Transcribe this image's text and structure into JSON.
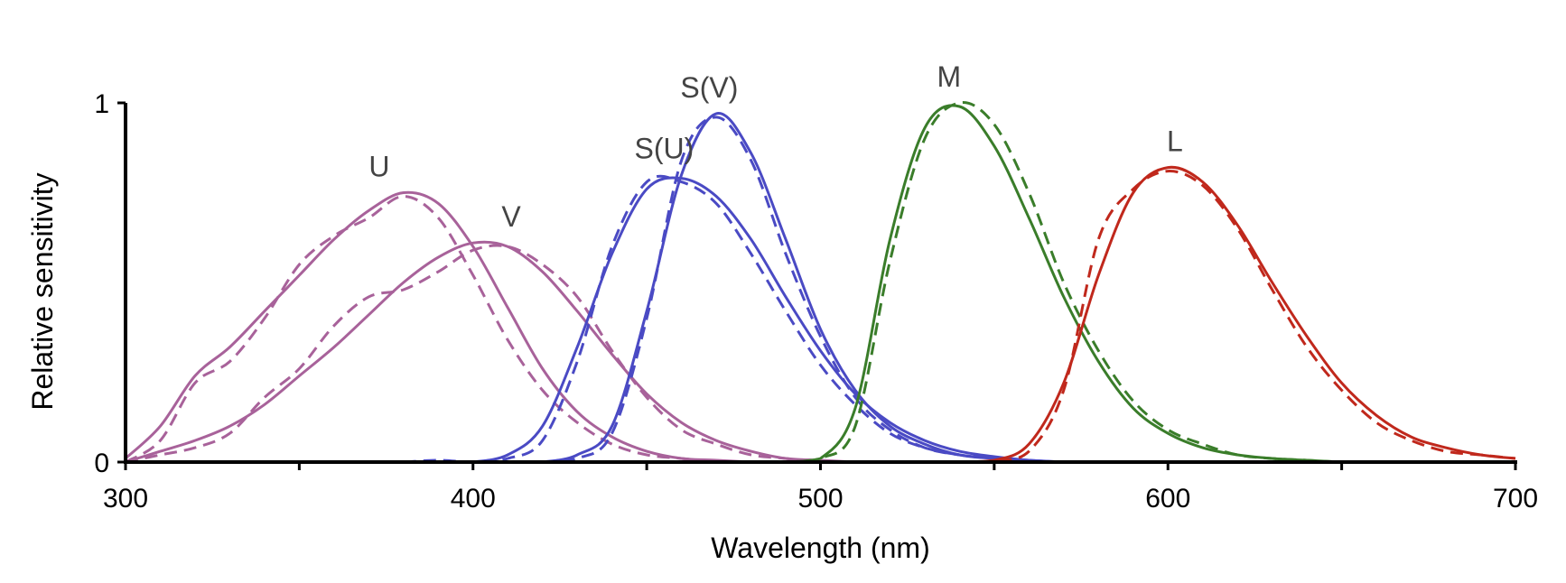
{
  "chart_data": {
    "type": "line",
    "title": "",
    "xlabel": "Wavelength (nm)",
    "ylabel": "Relative sensitivity",
    "xlim": [
      300,
      700
    ],
    "ylim": [
      0,
      1
    ],
    "x_ticks": [
      300,
      350,
      400,
      450,
      500,
      550,
      600,
      650,
      700
    ],
    "x_tick_labels": [
      "300",
      "",
      "400",
      "",
      "500",
      "",
      "600",
      "",
      "700"
    ],
    "y_ticks": [
      0,
      1
    ],
    "y_tick_labels": [
      "0",
      "1"
    ],
    "grid": false,
    "legend": "none",
    "x": [
      300,
      310,
      320,
      330,
      340,
      350,
      360,
      370,
      380,
      390,
      400,
      410,
      420,
      430,
      440,
      450,
      460,
      470,
      480,
      490,
      500,
      510,
      520,
      530,
      540,
      550,
      560,
      570,
      580,
      590,
      600,
      610,
      620,
      630,
      640,
      650,
      660,
      670,
      680,
      690,
      700
    ],
    "series": [
      {
        "name": "U",
        "label": "U",
        "style": "solid",
        "color": "#a8629a",
        "values": [
          0.01,
          0.1,
          0.24,
          0.32,
          0.42,
          0.52,
          0.62,
          0.7,
          0.75,
          0.72,
          0.6,
          0.43,
          0.26,
          0.14,
          0.07,
          0.03,
          0.01,
          0.005,
          0,
          0,
          0,
          0,
          0,
          0,
          0,
          0,
          0,
          0,
          0,
          0,
          0,
          0,
          0,
          0,
          0,
          0,
          0,
          0,
          0,
          0,
          0
        ]
      },
      {
        "name": "U (measured)",
        "label": "",
        "style": "dashed",
        "color": "#a8629a",
        "values": [
          0.0,
          0.06,
          0.22,
          0.28,
          0.4,
          0.55,
          0.63,
          0.68,
          0.74,
          0.68,
          0.52,
          0.34,
          0.2,
          0.11,
          0.05,
          0.02,
          0.01,
          0,
          0,
          0,
          0,
          0,
          0,
          0,
          0,
          0,
          0,
          0,
          0,
          0,
          0,
          0,
          0,
          0,
          0,
          0,
          0,
          0,
          0,
          0,
          0
        ]
      },
      {
        "name": "V",
        "label": "V",
        "style": "solid",
        "color": "#a8629a",
        "values": [
          0.0,
          0.03,
          0.06,
          0.1,
          0.16,
          0.24,
          0.32,
          0.41,
          0.5,
          0.57,
          0.61,
          0.6,
          0.53,
          0.42,
          0.3,
          0.19,
          0.11,
          0.06,
          0.03,
          0.01,
          0.005,
          0,
          0,
          0,
          0,
          0,
          0,
          0,
          0,
          0,
          0,
          0,
          0,
          0,
          0,
          0,
          0,
          0,
          0,
          0,
          0
        ]
      },
      {
        "name": "V (measured)",
        "label": "",
        "style": "dashed",
        "color": "#a8629a",
        "values": [
          0.0,
          0.02,
          0.04,
          0.08,
          0.18,
          0.26,
          0.38,
          0.46,
          0.48,
          0.53,
          0.59,
          0.6,
          0.55,
          0.46,
          0.31,
          0.18,
          0.09,
          0.05,
          0.02,
          0.01,
          0,
          0,
          0,
          0,
          0,
          0,
          0,
          0,
          0,
          0,
          0,
          0,
          0,
          0,
          0,
          0,
          0,
          0,
          0,
          0,
          0
        ]
      },
      {
        "name": "S(U)",
        "label": "S(U)",
        "style": "solid",
        "color": "#4a4ac4",
        "values": [
          0,
          0,
          0,
          0,
          0,
          0,
          0,
          0,
          0,
          0,
          0,
          0.02,
          0.1,
          0.32,
          0.58,
          0.76,
          0.79,
          0.74,
          0.62,
          0.46,
          0.31,
          0.19,
          0.11,
          0.06,
          0.03,
          0.015,
          0.005,
          0,
          0,
          0,
          0,
          0,
          0,
          0,
          0,
          0,
          0,
          0,
          0,
          0,
          0
        ]
      },
      {
        "name": "S(U) (measured)",
        "label": "",
        "style": "dashed",
        "color": "#4a4ac4",
        "values": [
          0,
          0,
          0,
          0,
          0,
          0,
          0,
          0,
          0,
          0.005,
          0,
          0.01,
          0.06,
          0.28,
          0.6,
          0.78,
          0.78,
          0.72,
          0.58,
          0.42,
          0.27,
          0.16,
          0.08,
          0.04,
          0.02,
          0.01,
          0,
          0,
          0,
          0,
          0,
          0,
          0,
          0,
          0,
          0,
          0,
          0,
          0,
          0,
          0
        ]
      },
      {
        "name": "S(V)",
        "label": "S(V)",
        "style": "solid",
        "color": "#4a4ac4",
        "values": [
          0,
          0,
          0,
          0,
          0,
          0,
          0,
          0,
          0,
          0,
          0,
          0,
          0,
          0.02,
          0.1,
          0.42,
          0.8,
          0.97,
          0.86,
          0.62,
          0.37,
          0.2,
          0.1,
          0.05,
          0.02,
          0.01,
          0.005,
          0,
          0,
          0,
          0,
          0,
          0,
          0,
          0,
          0,
          0,
          0,
          0,
          0,
          0
        ]
      },
      {
        "name": "S(V) (measured)",
        "label": "",
        "style": "dashed",
        "color": "#4a4ac4",
        "values": [
          0,
          0,
          0,
          0,
          0,
          0,
          0,
          0,
          0,
          0,
          0,
          0,
          0,
          0.01,
          0.08,
          0.4,
          0.84,
          0.96,
          0.84,
          0.58,
          0.35,
          0.18,
          0.09,
          0.04,
          0.02,
          0.01,
          0,
          0,
          0,
          0,
          0,
          0,
          0,
          0,
          0,
          0,
          0,
          0,
          0,
          0,
          0
        ]
      },
      {
        "name": "M",
        "label": "M",
        "style": "solid",
        "color": "#3a7d2a",
        "values": [
          0,
          0,
          0,
          0,
          0,
          0,
          0,
          0,
          0,
          0,
          0,
          0,
          0,
          0,
          0,
          0,
          0,
          0,
          0,
          0,
          0.01,
          0.15,
          0.62,
          0.93,
          0.99,
          0.88,
          0.68,
          0.46,
          0.28,
          0.15,
          0.08,
          0.04,
          0.02,
          0.01,
          0.005,
          0,
          0,
          0,
          0,
          0,
          0
        ]
      },
      {
        "name": "M (measured)",
        "label": "",
        "style": "dashed",
        "color": "#3a7d2a",
        "values": [
          0,
          0,
          0,
          0,
          0,
          0,
          0,
          0,
          0,
          0,
          0,
          0,
          0,
          0,
          0,
          0,
          0,
          0,
          0,
          0,
          0.01,
          0.1,
          0.56,
          0.9,
          1.0,
          0.94,
          0.75,
          0.5,
          0.31,
          0.17,
          0.09,
          0.05,
          0.02,
          0.01,
          0.005,
          0,
          0,
          0,
          0,
          0,
          0
        ]
      },
      {
        "name": "L",
        "label": "L",
        "style": "solid",
        "color": "#c0281c",
        "values": [
          0,
          0,
          0,
          0,
          0,
          0,
          0,
          0,
          0,
          0,
          0,
          0,
          0,
          0,
          0,
          0,
          0,
          0,
          0,
          0,
          0,
          0,
          0,
          0,
          0,
          0.005,
          0.05,
          0.22,
          0.52,
          0.75,
          0.82,
          0.78,
          0.66,
          0.5,
          0.35,
          0.22,
          0.13,
          0.07,
          0.04,
          0.02,
          0.01
        ]
      },
      {
        "name": "L (measured)",
        "label": "",
        "style": "dashed",
        "color": "#c0281c",
        "values": [
          0,
          0,
          0,
          0,
          0,
          0,
          0,
          0,
          0,
          0,
          0,
          0,
          0,
          0,
          0,
          0,
          0,
          0,
          0,
          0,
          0,
          0,
          0,
          0,
          0,
          0.003,
          0.03,
          0.2,
          0.62,
          0.76,
          0.81,
          0.77,
          0.65,
          0.48,
          0.32,
          0.2,
          0.11,
          0.06,
          0.03,
          0.02,
          0.01
        ]
      }
    ],
    "annotations": [
      {
        "text": "U",
        "x": 373,
        "y": 0.75
      },
      {
        "text": "V",
        "x": 411,
        "y": 0.61
      },
      {
        "text": "S(U)",
        "x": 455,
        "y": 0.8
      },
      {
        "text": "S(V)",
        "x": 468,
        "y": 0.97
      },
      {
        "text": "M",
        "x": 537,
        "y": 1.0
      },
      {
        "text": "L",
        "x": 602,
        "y": 0.82
      }
    ]
  }
}
